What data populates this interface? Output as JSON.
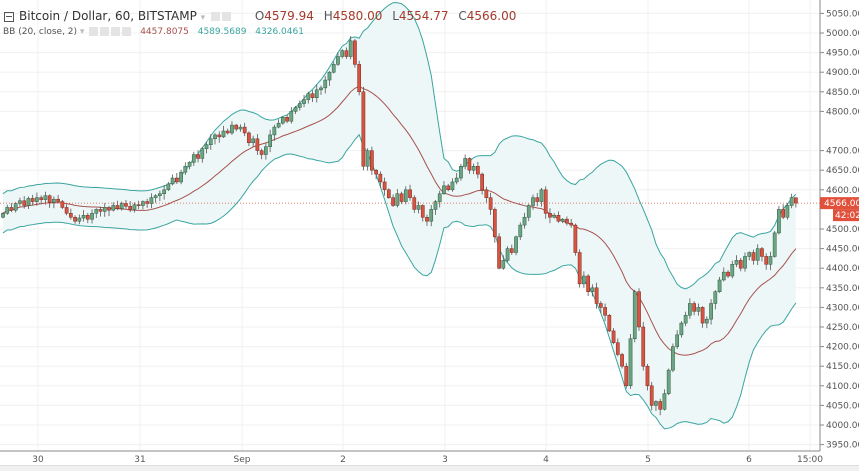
{
  "header": {
    "title": "Bitcoin / Dollar, 60, BITSTAMP",
    "ohlc": {
      "o_label": "O",
      "o": "4579.94",
      "h_label": "H",
      "h": "4580.00",
      "l_label": "L",
      "l": "4554.77",
      "c_label": "C",
      "c": "4566.00"
    }
  },
  "indicator": {
    "label": "BB (20, close, 2)",
    "basis": "4457.8075",
    "upper": "4589.5689",
    "lower": "4326.0461"
  },
  "colors": {
    "up": "#6ba583",
    "down": "#d75442",
    "band": "#3aa5a0",
    "basis": "#a6524f",
    "band_fill": "#eef7f7",
    "last_price": "#e0503a"
  },
  "chart_data": {
    "type": "candlestick",
    "symbol": "Bitcoin / Dollar",
    "interval": "60",
    "exchange": "BITSTAMP",
    "ylim": [
      3950,
      5050
    ],
    "y_ticks": [
      "5050.00",
      "5000.00",
      "4950.00",
      "4900.00",
      "4850.00",
      "4800.00",
      "4700.00",
      "4650.00",
      "4600.00",
      "4500.00",
      "4450.00",
      "4400.00",
      "4350.00",
      "4300.00",
      "4250.00",
      "4200.00",
      "4150.00",
      "4100.00",
      "4050.00",
      "4000.00",
      "3950.00"
    ],
    "x_ticks": [
      "30",
      "31",
      "Sep",
      "2",
      "3",
      "4",
      "5",
      "6",
      "15:00"
    ],
    "last_price": "4566.00",
    "countdown": "42:02",
    "grid": true,
    "closes": [
      4540,
      4555,
      4548,
      4565,
      4572,
      4560,
      4578,
      4570,
      4580,
      4575,
      4585,
      4568,
      4576,
      4570,
      4555,
      4540,
      4530,
      4520,
      4528,
      4535,
      4525,
      4540,
      4550,
      4545,
      4555,
      4548,
      4560,
      4552,
      4565,
      4558,
      4550,
      4562,
      4560,
      4570,
      4565,
      4580,
      4585,
      4590,
      4600,
      4615,
      4630,
      4620,
      4645,
      4660,
      4670,
      4690,
      4680,
      4705,
      4715,
      4730,
      4740,
      4735,
      4750,
      4745,
      4765,
      4755,
      4760,
      4745,
      4720,
      4730,
      4700,
      4690,
      4710,
      4740,
      4760,
      4770,
      4785,
      4775,
      4800,
      4810,
      4820,
      4830,
      4845,
      4835,
      4855,
      4860,
      4880,
      4900,
      4920,
      4940,
      4955,
      4940,
      4980,
      4920,
      4850,
      4660,
      4700,
      4650,
      4640,
      4620,
      4600,
      4580,
      4560,
      4590,
      4570,
      4600,
      4580,
      4550,
      4560,
      4530,
      4520,
      4550,
      4570,
      4590,
      4610,
      4600,
      4620,
      4630,
      4660,
      4680,
      4650,
      4660,
      4640,
      4600,
      4580,
      4550,
      4480,
      4400,
      4420,
      4450,
      4440,
      4480,
      4510,
      4530,
      4560,
      4580,
      4570,
      4600,
      4540,
      4530,
      4535,
      4520,
      4525,
      4515,
      4510,
      4440,
      4360,
      4380,
      4340,
      4350,
      4310,
      4300,
      4280,
      4240,
      4210,
      4180,
      4150,
      4100,
      4220,
      4340,
      4250,
      4150,
      4100,
      4050,
      4060,
      4040,
      4080,
      4140,
      4200,
      4230,
      4260,
      4280,
      4310,
      4290,
      4300,
      4260,
      4270,
      4310,
      4340,
      4370,
      4390,
      4380,
      4410,
      4420,
      4400,
      4430,
      4440,
      4420,
      4450,
      4430,
      4410,
      4430,
      4490,
      4550,
      4530,
      4560,
      4580,
      4566
    ],
    "last_open": 4579.94,
    "last_high": 4580.0,
    "last_low": 4554.77
  }
}
